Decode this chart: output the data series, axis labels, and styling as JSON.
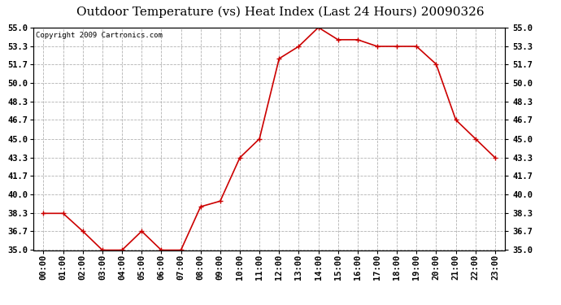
{
  "title": "Outdoor Temperature (vs) Heat Index (Last 24 Hours) 20090326",
  "copyright": "Copyright 2009 Cartronics.com",
  "x_labels": [
    "00:00",
    "01:00",
    "02:00",
    "03:00",
    "04:00",
    "05:00",
    "06:00",
    "07:00",
    "08:00",
    "09:00",
    "10:00",
    "11:00",
    "12:00",
    "13:00",
    "14:00",
    "15:00",
    "16:00",
    "17:00",
    "18:00",
    "19:00",
    "20:00",
    "21:00",
    "22:00",
    "23:00"
  ],
  "y_values": [
    38.3,
    38.3,
    36.7,
    35.0,
    35.0,
    36.7,
    35.0,
    35.0,
    38.9,
    39.4,
    43.3,
    45.0,
    52.2,
    53.3,
    55.0,
    53.9,
    53.9,
    53.3,
    53.3,
    53.3,
    51.7,
    46.7,
    45.0,
    43.3
  ],
  "line_color": "#cc0000",
  "marker": "+",
  "background_color": "#ffffff",
  "plot_bg_color": "#ffffff",
  "grid_color": "#aaaaaa",
  "ylim": [
    35.0,
    55.0
  ],
  "yticks": [
    35.0,
    36.7,
    38.3,
    40.0,
    41.7,
    43.3,
    45.0,
    46.7,
    48.3,
    50.0,
    51.7,
    53.3,
    55.0
  ],
  "title_fontsize": 11,
  "copyright_fontsize": 6.5,
  "tick_fontsize": 7.5
}
